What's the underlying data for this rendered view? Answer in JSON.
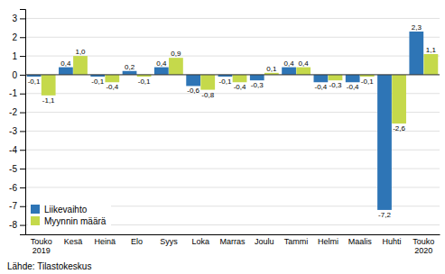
{
  "chart_data": {
    "type": "bar",
    "categories": [
      "Touko\n2019",
      "Kesä",
      "Heinä",
      "Elo",
      "Syys",
      "Loka",
      "Marras",
      "Joulu",
      "Tammi",
      "Helmi",
      "Maalis",
      "Huhti",
      "Touko\n2020"
    ],
    "series": [
      {
        "name": "Liikevaihto",
        "color": "#2E75B6",
        "values": [
          -0.1,
          0.4,
          -0.1,
          0.2,
          0.4,
          -0.6,
          -0.1,
          -0.3,
          0.4,
          -0.4,
          -0.4,
          -7.2,
          2.3
        ],
        "value_labels": [
          "-0,1",
          "0,4",
          "-0,1",
          "0,2",
          "0,4",
          "-0,6",
          "-0,1",
          "-0,3",
          "0,4",
          "-0,4",
          "-0,4",
          "-7,2",
          "2,3"
        ]
      },
      {
        "name": "Myynnin määrä",
        "color": "#C5D94B",
        "values": [
          -1.1,
          1.0,
          -0.4,
          -0.1,
          0.9,
          -0.8,
          -0.4,
          0.1,
          0.4,
          -0.3,
          -0.1,
          -2.6,
          1.1
        ],
        "value_labels": [
          "-1,1",
          "1,0",
          "-0,4",
          "-0,1",
          "0,9",
          "-0,8",
          "-0,4",
          "0,1",
          "0,4",
          "-0,3",
          "-0,1",
          "-2,6",
          "1,1"
        ]
      }
    ],
    "ylim": [
      -8.5,
      3.5
    ],
    "yticks": [
      -8,
      -7,
      -6,
      -5,
      -4,
      -3,
      -2,
      -1,
      0,
      1,
      2,
      3
    ],
    "grid": true,
    "legend": "lower left",
    "data_labels": true,
    "annotations": [
      "Lähde: Tilastokeskus"
    ]
  }
}
